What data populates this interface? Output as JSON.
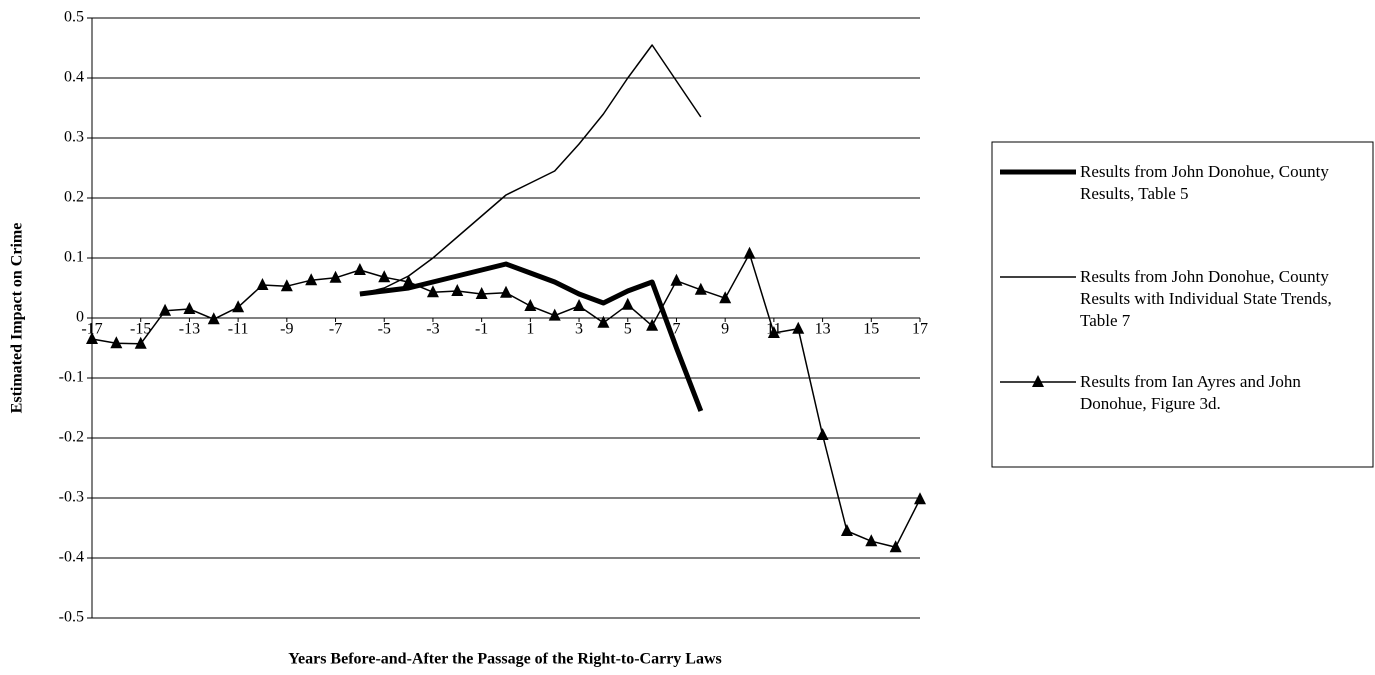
{
  "chart_data": {
    "type": "line",
    "x_label": "Years Before-and-After the Passage of the Right-to-Carry Laws",
    "y_label": "Estimated Impact on Crime",
    "x": [
      -17,
      -16,
      -15,
      -14,
      -13,
      -12,
      -11,
      -10,
      -9,
      -8,
      -7,
      -6,
      -5,
      -4,
      -3,
      -2,
      -1,
      0,
      1,
      2,
      3,
      4,
      5,
      6,
      7,
      8,
      9,
      10,
      11,
      12,
      13,
      14,
      15,
      16,
      17
    ],
    "xlim": [
      -17,
      17
    ],
    "xticks": [
      -17,
      -15,
      -13,
      -11,
      -9,
      -7,
      -5,
      -3,
      -1,
      1,
      3,
      5,
      7,
      9,
      11,
      13,
      15,
      17
    ],
    "ylim": [
      -0.5,
      0.5
    ],
    "yticks": [
      0.5,
      0.4,
      0.3,
      0.2,
      0.1,
      0,
      -0.1,
      -0.2,
      -0.3,
      -0.4,
      -0.5
    ],
    "grid": true,
    "legend": "right",
    "series": [
      {
        "name": "Results from John Donohue, County Results, Table 5",
        "color": "#000000",
        "line_width": 5,
        "marker": "none",
        "values": [
          null,
          null,
          null,
          null,
          null,
          null,
          null,
          null,
          null,
          null,
          null,
          0.04,
          0.045,
          0.05,
          0.06,
          0.07,
          0.08,
          0.09,
          0.075,
          0.06,
          0.04,
          0.025,
          0.045,
          0.06,
          -0.05,
          -0.155,
          null,
          null,
          null,
          null,
          null,
          null,
          null,
          null,
          null
        ]
      },
      {
        "name": "Results from John Donohue, County Results with Individual State Trends, Table 7",
        "color": "#000000",
        "line_width": 1.5,
        "marker": "none",
        "values": [
          null,
          null,
          null,
          null,
          null,
          null,
          null,
          null,
          null,
          null,
          null,
          0.04,
          0.05,
          0.07,
          0.1,
          0.135,
          0.17,
          0.205,
          0.225,
          0.245,
          0.29,
          0.34,
          0.4,
          0.455,
          0.395,
          0.335,
          null,
          null,
          null,
          null,
          null,
          null,
          null,
          null,
          null
        ]
      },
      {
        "name": "Results from Ian Ayres and John Donohue, Figure 3d.",
        "color": "#000000",
        "line_width": 1.5,
        "marker": "triangle",
        "values": [
          -0.035,
          -0.042,
          -0.043,
          0.012,
          0.015,
          -0.002,
          0.018,
          0.055,
          0.053,
          0.063,
          0.067,
          0.08,
          0.068,
          0.06,
          0.043,
          0.045,
          0.04,
          0.042,
          0.02,
          0.004,
          0.02,
          -0.008,
          0.022,
          -0.013,
          0.062,
          0.047,
          0.033,
          0.107,
          -0.025,
          -0.018,
          -0.195,
          -0.355,
          -0.372,
          -0.382,
          -0.302
        ]
      }
    ]
  }
}
